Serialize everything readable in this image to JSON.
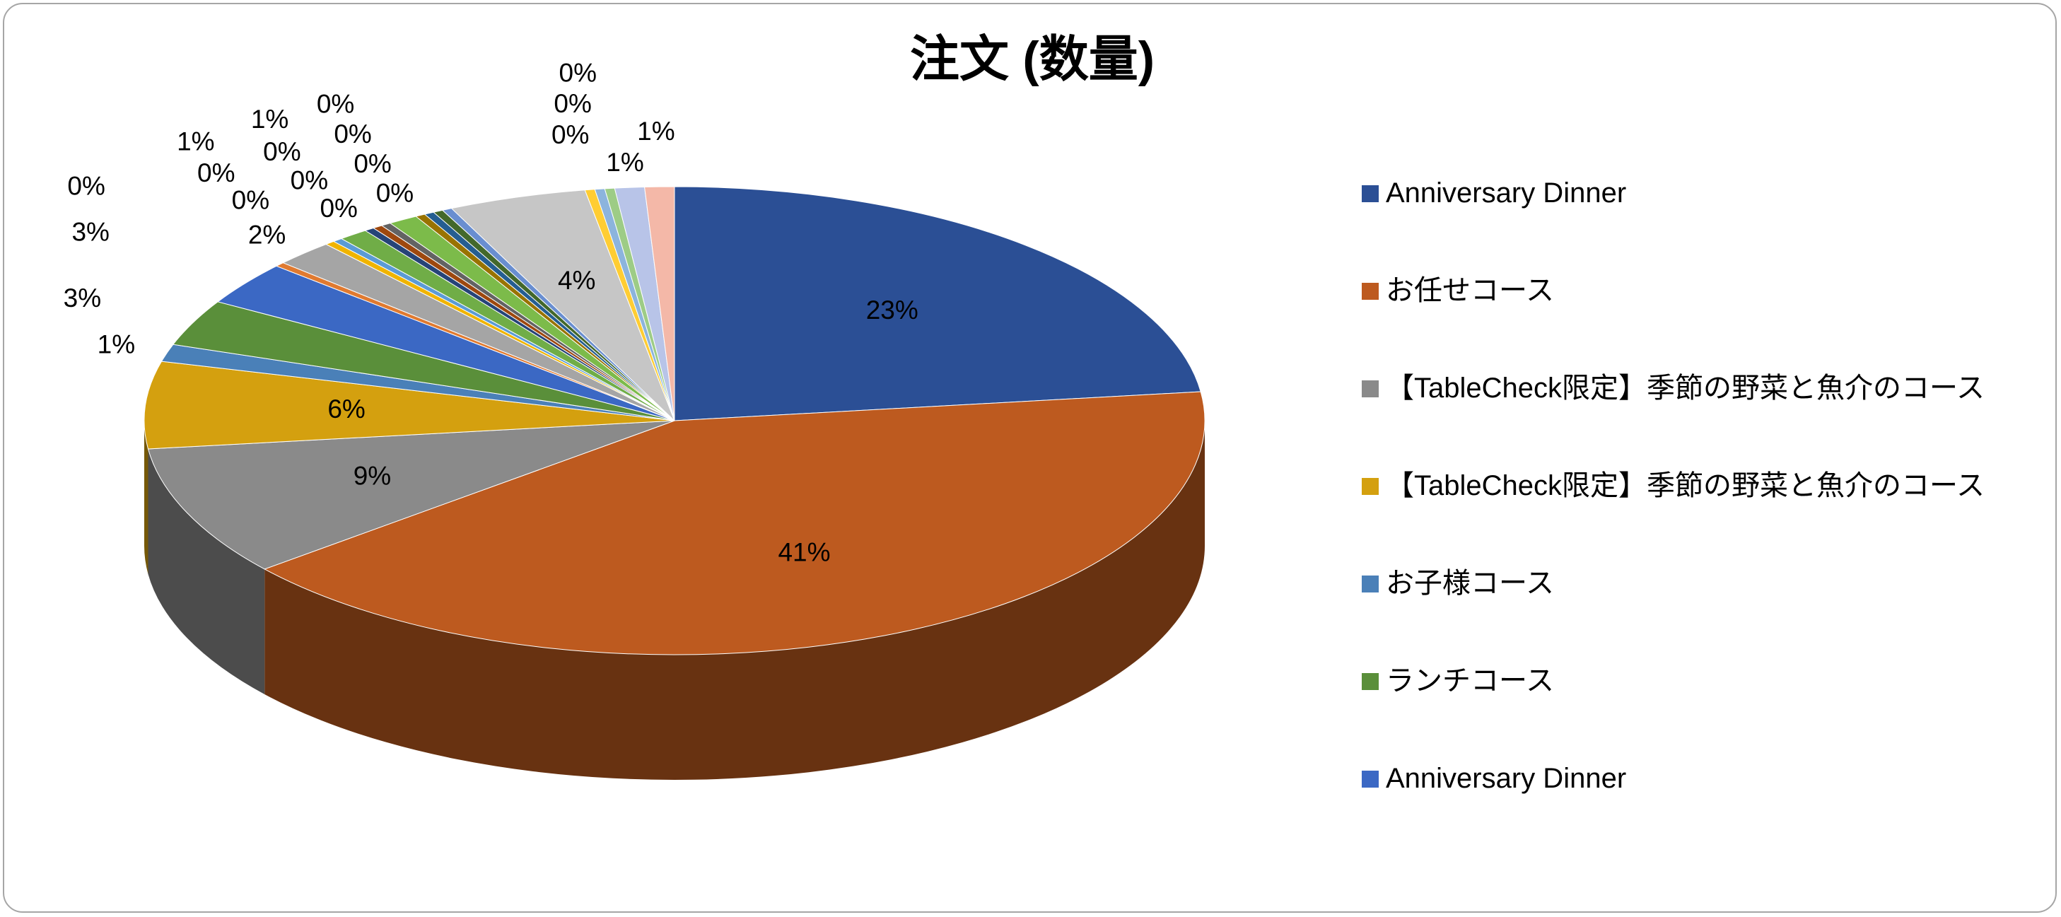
{
  "chart_data": {
    "type": "pie",
    "title": "注文 (数量)",
    "categories": [
      "Anniversary Dinner",
      "お任せコース",
      "【TableCheck限定】季節の野菜と魚介のコース",
      "【TableCheck限定】季節の野菜と魚介のコース",
      "お子様コース",
      "ランチコース",
      "Anniversary Dinner",
      null,
      null,
      null,
      null,
      null,
      null,
      null,
      null,
      null,
      null,
      null,
      null,
      null,
      null,
      null,
      null,
      null,
      null,
      null
    ],
    "values": [
      23,
      41,
      9,
      6,
      1.2,
      3.2,
      3.0,
      0.3,
      1.8,
      0.3,
      0.3,
      0.9,
      0.3,
      0.3,
      0.3,
      0.9,
      0.3,
      0.3,
      0.3,
      0.3,
      4.2,
      0.3,
      0.3,
      0.3,
      0.9,
      0.9
    ],
    "value_labels": [
      "23%",
      "41%",
      "9%",
      "6%",
      "1%",
      "3%",
      "3%",
      "0%",
      "2%",
      "0%",
      "0%",
      "1%",
      "0%",
      "0%",
      "0%",
      "1%",
      "0%",
      "0%",
      "0%",
      "0%",
      "4%",
      "0%",
      "0%",
      "0%",
      "1%",
      "1%"
    ],
    "colors": [
      "#2b4f95",
      "#bd5a1f",
      "#8a8a8a",
      "#d4a00f",
      "#4a80b8",
      "#5a8f3a",
      "#3b68c4",
      "#e07a30",
      "#a5a5a5",
      "#f0b400",
      "#5b9bd5",
      "#70ad47",
      "#264478",
      "#9e480e",
      "#636363",
      "#7cbb4a",
      "#997300",
      "#255e91",
      "#43682b",
      "#698ed0",
      "#c6c6c6",
      "#ffcd33",
      "#8cb4dd",
      "#9dcc86",
      "#b8c4e8",
      "#f4b8a8"
    ],
    "legend": "right"
  }
}
